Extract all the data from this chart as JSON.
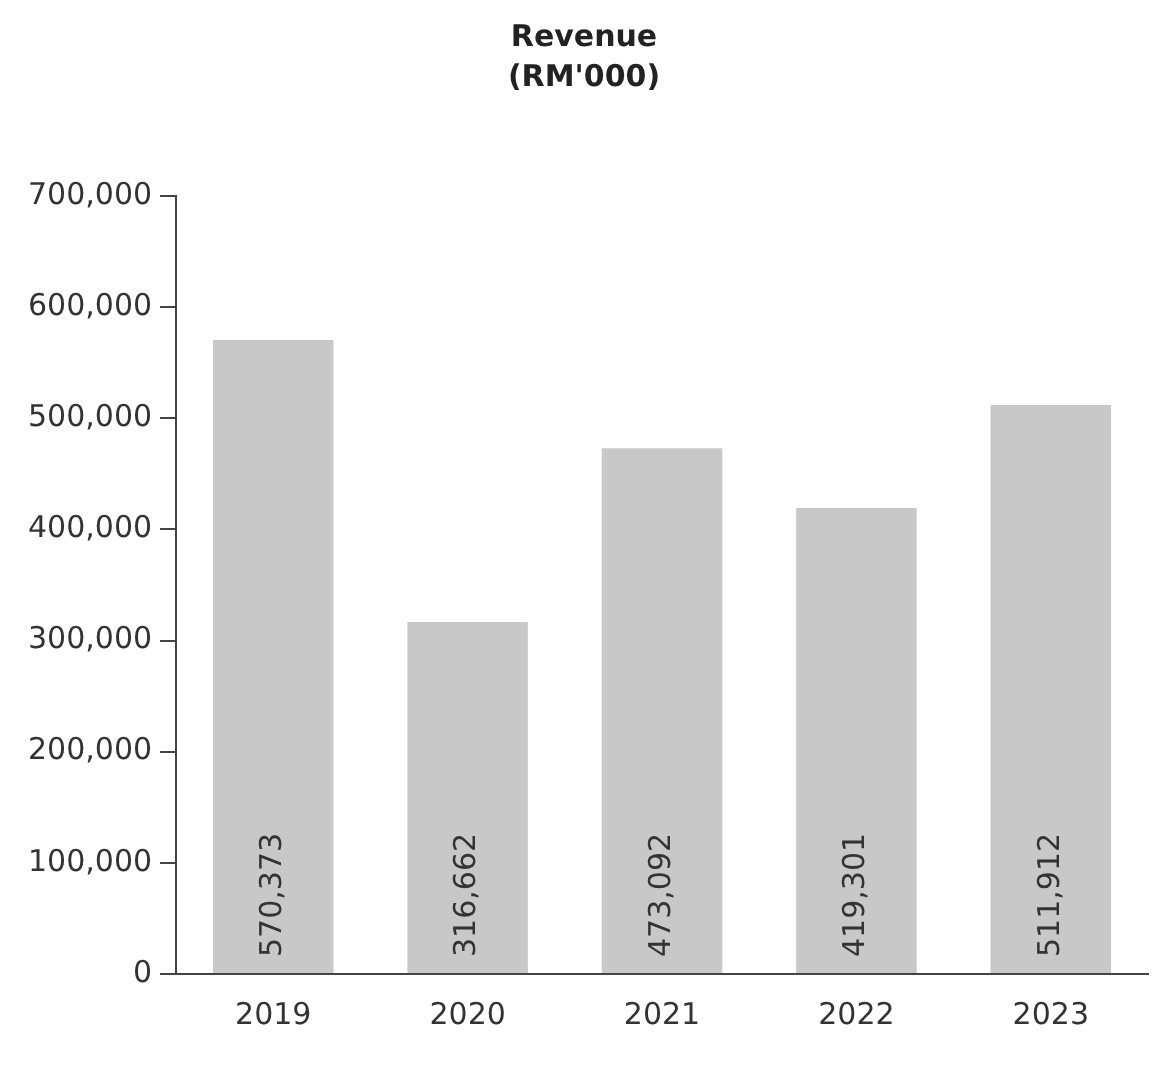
{
  "chart_data": {
    "type": "bar",
    "title": "Revenue",
    "subtitle": "(RM'000)",
    "categories": [
      "2019",
      "2020",
      "2021",
      "2022",
      "2023"
    ],
    "values": [
      570373,
      316662,
      473092,
      419301,
      511912
    ],
    "color": "#c8c8c8",
    "value_labels": [
      "570,373",
      "316,662",
      "473,092",
      "419,301",
      "511,912"
    ],
    "ylim": [
      0,
      700000
    ],
    "yticks": [
      0,
      {
        "value": 100000,
        "label": "100,000"
      },
      {
        "value": 200000,
        "label": "200,000"
      },
      {
        "value": 300000,
        "label": "300,000"
      },
      {
        "value": 400000,
        "label": "400,000"
      },
      {
        "value": 500000,
        "label": "500,000"
      },
      {
        "value": 600000,
        "label": "600,000"
      },
      {
        "value": 700000,
        "label": "700,000"
      }
    ],
    "grid": false,
    "legend": false
  }
}
